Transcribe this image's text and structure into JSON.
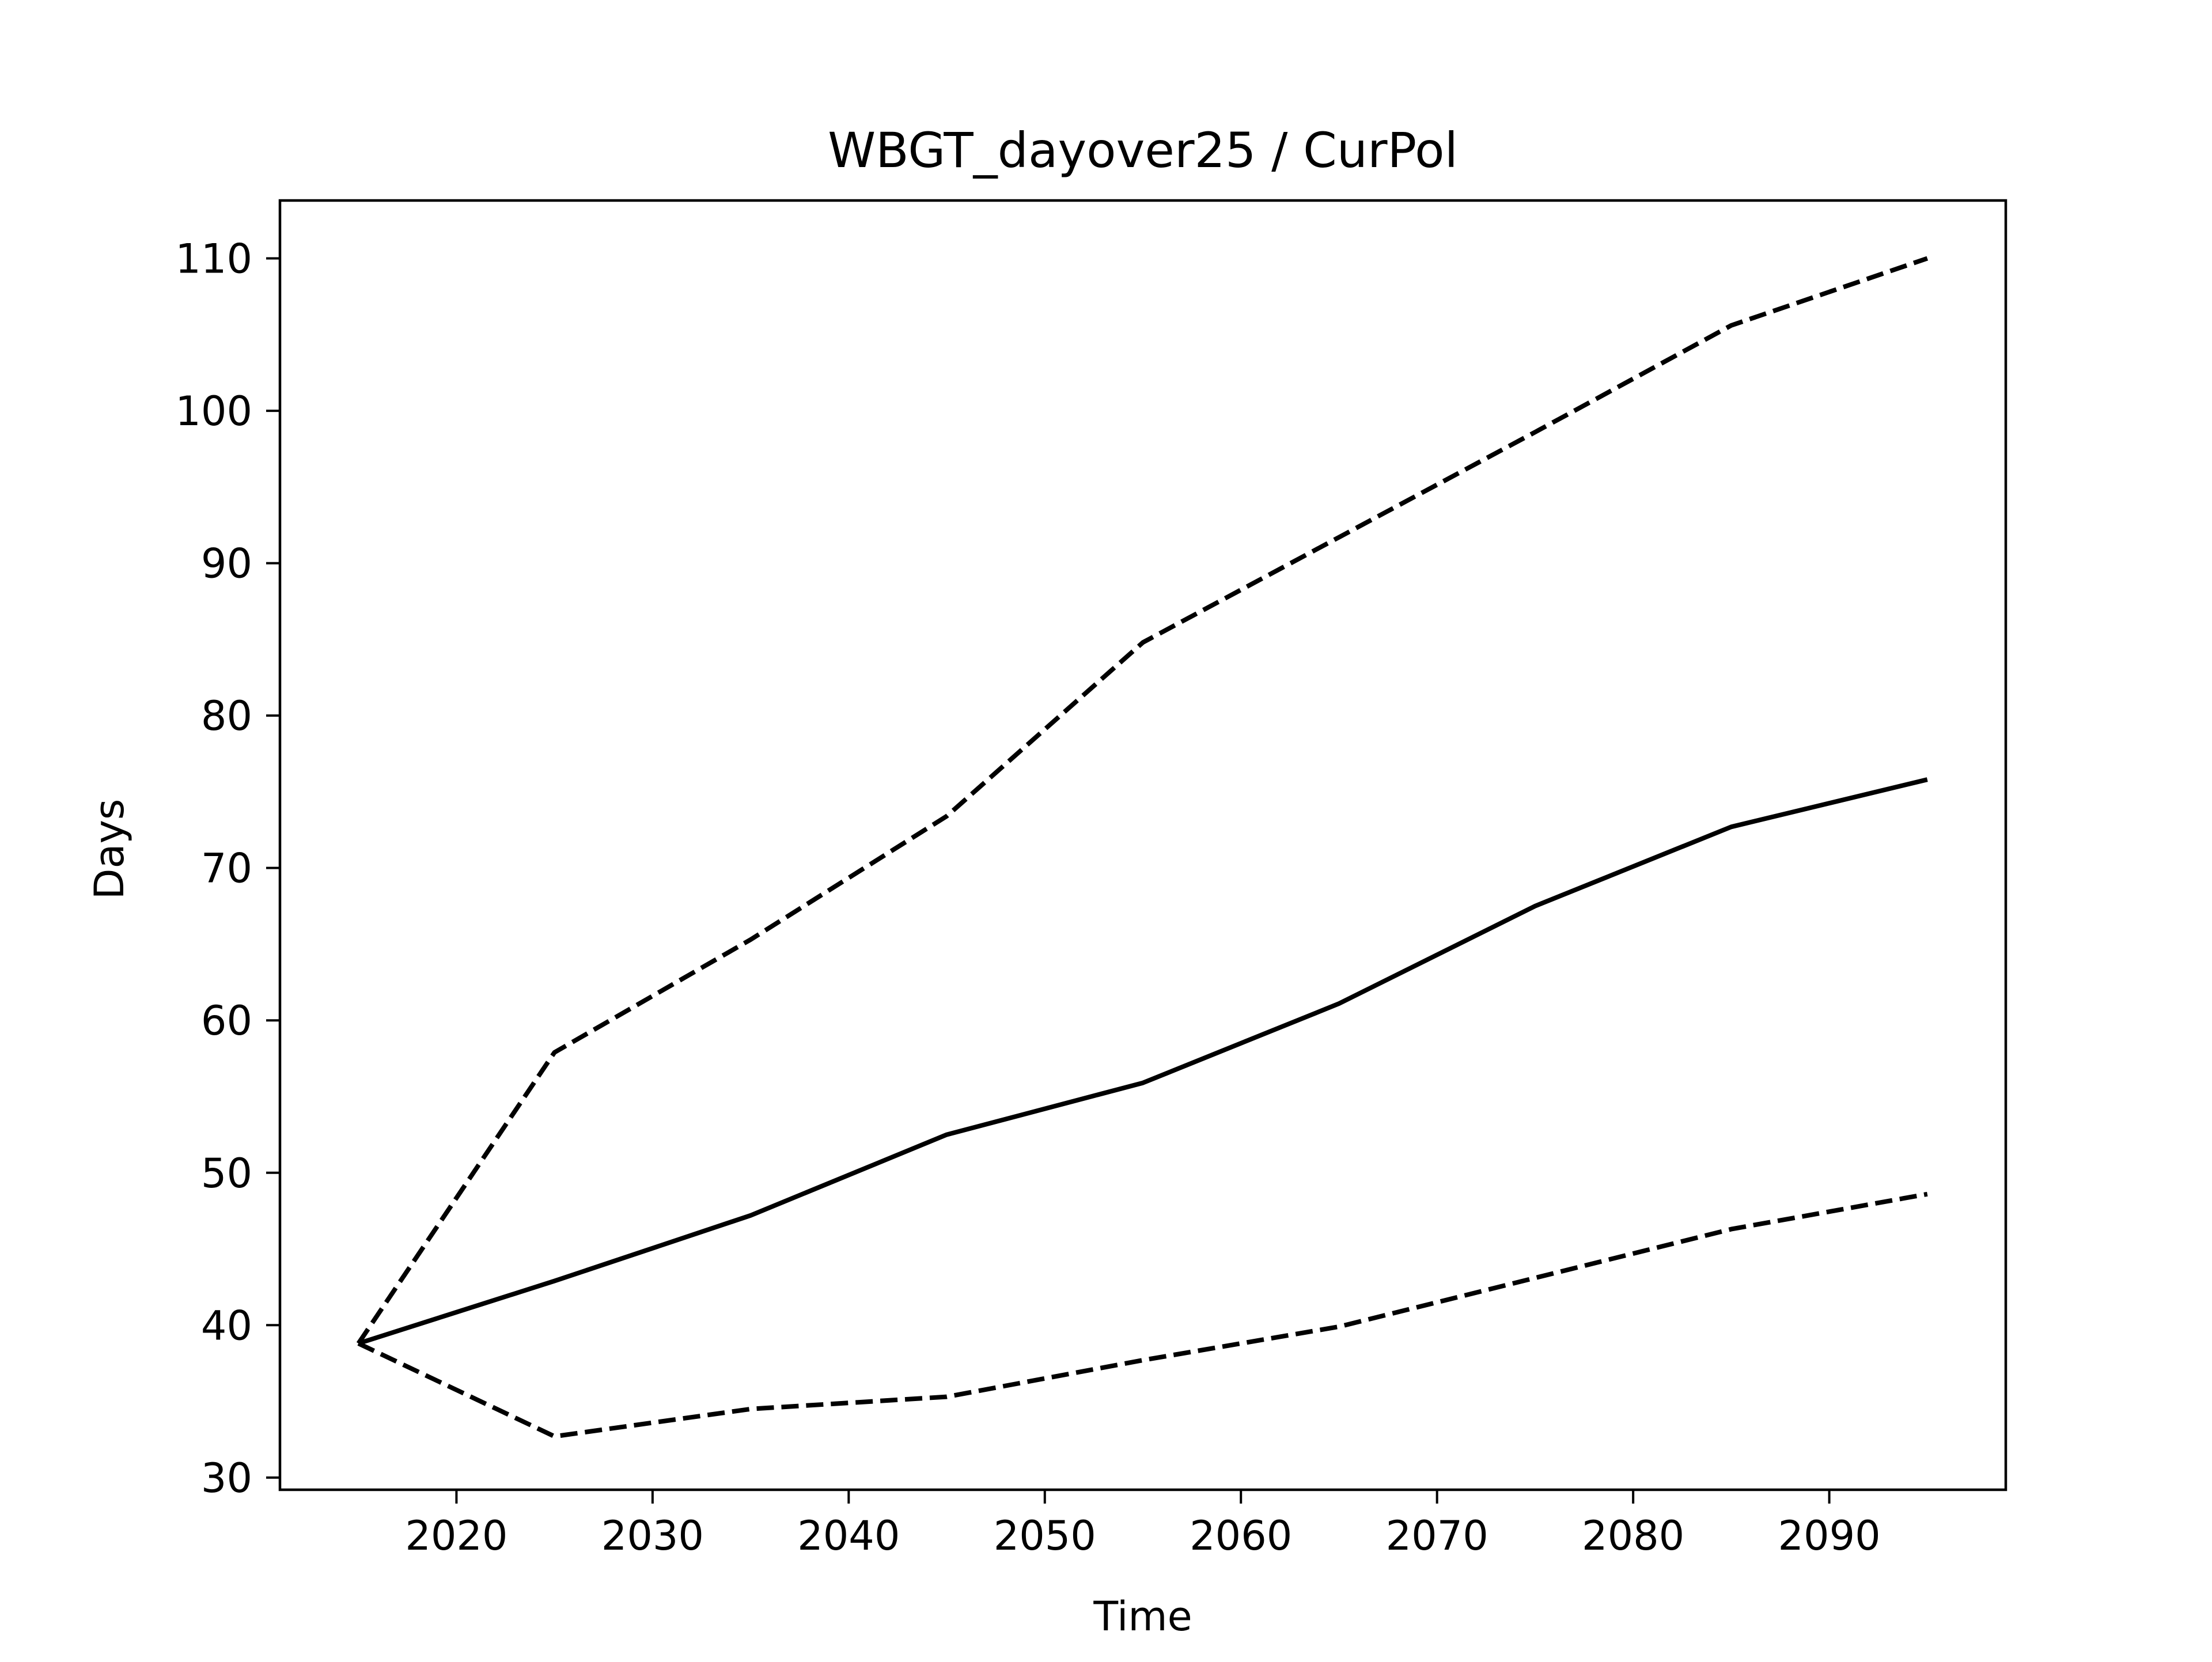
{
  "chart_data": {
    "type": "line",
    "title": "WBGT_dayover25 / CurPol",
    "xlabel": "Time",
    "ylabel": "Days",
    "xlim": [
      2011,
      2099
    ],
    "ylim": [
      29.2,
      113.8
    ],
    "xticks": [
      2020,
      2030,
      2040,
      2050,
      2060,
      2070,
      2080,
      2090
    ],
    "yticks": [
      30,
      40,
      50,
      60,
      70,
      80,
      90,
      100,
      110
    ],
    "grid": false,
    "legend": "none",
    "x": [
      2015,
      2025,
      2035,
      2045,
      2055,
      2065,
      2075,
      2085,
      2095
    ],
    "series": [
      {
        "values": [
          38.8,
          57.9,
          65.3,
          73.4,
          84.8,
          91.7,
          98.6,
          105.6,
          110.0
        ],
        "color": "#000000",
        "line_style": "dashed"
      },
      {
        "values": [
          38.8,
          42.9,
          47.2,
          52.5,
          55.9,
          61.1,
          67.5,
          72.7,
          75.8
        ],
        "color": "#000000",
        "line_style": "solid"
      },
      {
        "values": [
          38.8,
          32.7,
          34.5,
          35.3,
          37.7,
          39.9,
          43.1,
          46.3,
          48.6
        ],
        "color": "#000000",
        "line_style": "dashed"
      }
    ]
  }
}
